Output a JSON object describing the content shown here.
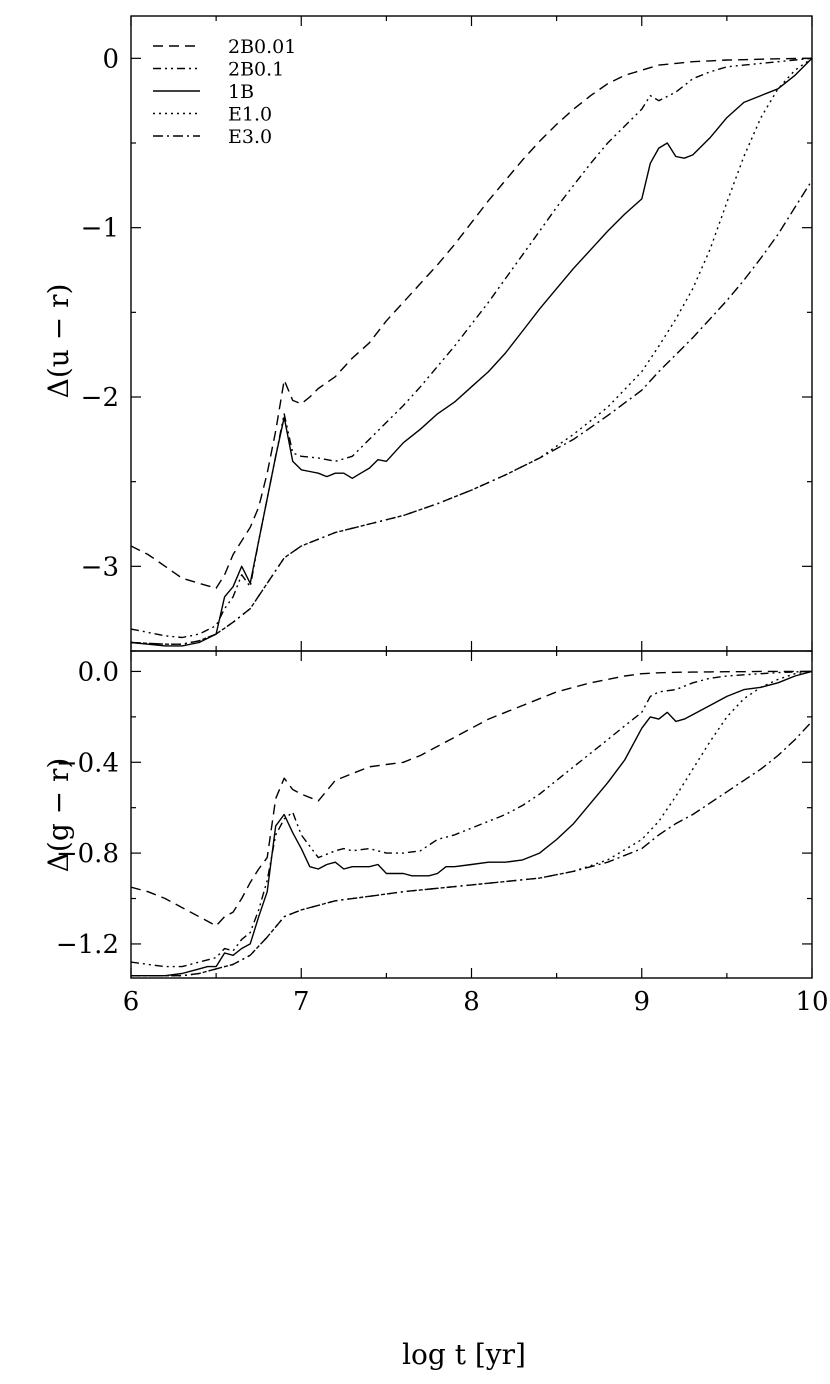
{
  "chart_data": [
    {
      "type": "line",
      "panel": "top",
      "xlabel": "log t [yr]",
      "ylabel": "Δ(u − r)",
      "xlim": [
        6,
        10
      ],
      "ylim": [
        -3.5,
        0.25
      ],
      "xticks": [
        6,
        7,
        8,
        9,
        10
      ],
      "xtick_labels": [
        "6",
        "7",
        "8",
        "9",
        "10"
      ],
      "show_xtick_labels": false,
      "yticks": [
        0,
        -1,
        -2,
        -3
      ],
      "ytick_labels": [
        "0",
        "−1",
        "−2",
        "−3"
      ],
      "grid": false,
      "legend_placement": "top-left",
      "series": [
        {
          "name": "2B0.01",
          "dash": "10,6",
          "x": [
            6.0,
            6.1,
            6.2,
            6.3,
            6.4,
            6.5,
            6.55,
            6.6,
            6.65,
            6.7,
            6.75,
            6.8,
            6.85,
            6.9,
            6.95,
            7.0,
            7.05,
            7.1,
            7.2,
            7.3,
            7.4,
            7.5,
            7.6,
            7.7,
            7.8,
            7.9,
            8.0,
            8.1,
            8.2,
            8.3,
            8.4,
            8.5,
            8.6,
            8.7,
            8.8,
            8.9,
            9.0,
            9.1,
            9.2,
            9.3,
            9.4,
            9.5,
            9.6,
            9.7,
            9.8,
            9.9,
            10.0
          ],
          "y": [
            -2.88,
            -2.93,
            -3.0,
            -3.07,
            -3.1,
            -3.13,
            -3.05,
            -2.93,
            -2.85,
            -2.77,
            -2.65,
            -2.45,
            -2.2,
            -1.9,
            -2.02,
            -2.04,
            -2.0,
            -1.95,
            -1.88,
            -1.77,
            -1.68,
            -1.55,
            -1.44,
            -1.33,
            -1.22,
            -1.1,
            -0.97,
            -0.84,
            -0.72,
            -0.6,
            -0.49,
            -0.39,
            -0.3,
            -0.22,
            -0.15,
            -0.1,
            -0.07,
            -0.04,
            -0.03,
            -0.02,
            -0.015,
            -0.01,
            -0.008,
            -0.005,
            -0.003,
            -0.001,
            0.0
          ]
        },
        {
          "name": "2B0.1",
          "dash": "8,4,2,4,2,4",
          "x": [
            6.0,
            6.1,
            6.2,
            6.3,
            6.4,
            6.5,
            6.55,
            6.6,
            6.65,
            6.7,
            6.75,
            6.8,
            6.85,
            6.9,
            6.95,
            7.0,
            7.1,
            7.2,
            7.3,
            7.4,
            7.5,
            7.6,
            7.7,
            7.8,
            7.9,
            8.0,
            8.1,
            8.2,
            8.3,
            8.4,
            8.5,
            8.6,
            8.7,
            8.8,
            8.9,
            9.0,
            9.05,
            9.1,
            9.2,
            9.3,
            9.4,
            9.5,
            9.6,
            9.7,
            9.8,
            9.9,
            10.0
          ],
          "y": [
            -3.37,
            -3.39,
            -3.41,
            -3.42,
            -3.4,
            -3.35,
            -3.25,
            -3.18,
            -3.05,
            -3.12,
            -2.85,
            -2.6,
            -2.35,
            -2.1,
            -2.33,
            -2.35,
            -2.36,
            -2.38,
            -2.35,
            -2.25,
            -2.15,
            -2.05,
            -1.94,
            -1.82,
            -1.7,
            -1.57,
            -1.44,
            -1.3,
            -1.16,
            -1.02,
            -0.88,
            -0.75,
            -0.62,
            -0.5,
            -0.4,
            -0.3,
            -0.22,
            -0.25,
            -0.2,
            -0.12,
            -0.08,
            -0.05,
            -0.04,
            -0.03,
            -0.02,
            -0.01,
            0.0
          ]
        },
        {
          "name": "1B",
          "dash": "",
          "x": [
            6.0,
            6.1,
            6.2,
            6.3,
            6.4,
            6.5,
            6.55,
            6.6,
            6.65,
            6.7,
            6.75,
            6.8,
            6.85,
            6.9,
            6.95,
            7.0,
            7.05,
            7.1,
            7.15,
            7.2,
            7.25,
            7.3,
            7.35,
            7.4,
            7.45,
            7.5,
            7.6,
            7.7,
            7.8,
            7.9,
            8.0,
            8.1,
            8.2,
            8.3,
            8.4,
            8.5,
            8.6,
            8.7,
            8.8,
            8.9,
            9.0,
            9.05,
            9.1,
            9.15,
            9.2,
            9.25,
            9.3,
            9.4,
            9.5,
            9.6,
            9.7,
            9.8,
            9.9,
            10.0
          ],
          "y": [
            -3.45,
            -3.46,
            -3.47,
            -3.47,
            -3.45,
            -3.4,
            -3.18,
            -3.12,
            -3.0,
            -3.1,
            -2.85,
            -2.6,
            -2.35,
            -2.12,
            -2.38,
            -2.43,
            -2.44,
            -2.45,
            -2.47,
            -2.45,
            -2.45,
            -2.48,
            -2.45,
            -2.42,
            -2.37,
            -2.38,
            -2.27,
            -2.19,
            -2.1,
            -2.03,
            -1.94,
            -1.85,
            -1.74,
            -1.61,
            -1.48,
            -1.36,
            -1.24,
            -1.13,
            -1.02,
            -0.92,
            -0.83,
            -0.62,
            -0.53,
            -0.5,
            -0.58,
            -0.59,
            -0.57,
            -0.47,
            -0.35,
            -0.26,
            -0.22,
            -0.18,
            -0.1,
            0.0
          ]
        },
        {
          "name": "E1.0",
          "dash": "2,4",
          "x": [
            6.0,
            6.2,
            6.3,
            6.4,
            6.5,
            6.6,
            6.7,
            6.8,
            6.9,
            7.0,
            7.2,
            7.4,
            7.6,
            7.8,
            8.0,
            8.2,
            8.4,
            8.6,
            8.8,
            9.0,
            9.1,
            9.2,
            9.3,
            9.4,
            9.5,
            9.6,
            9.7,
            9.8,
            9.9,
            10.0
          ],
          "y": [
            -3.45,
            -3.46,
            -3.46,
            -3.44,
            -3.4,
            -3.33,
            -3.25,
            -3.1,
            -2.95,
            -2.88,
            -2.8,
            -2.75,
            -2.7,
            -2.63,
            -2.55,
            -2.46,
            -2.36,
            -2.22,
            -2.06,
            -1.85,
            -1.7,
            -1.54,
            -1.36,
            -1.13,
            -0.85,
            -0.58,
            -0.35,
            -0.18,
            -0.07,
            0.0
          ]
        },
        {
          "name": "E3.0",
          "dash": "10,4,2,4",
          "x": [
            6.0,
            6.2,
            6.3,
            6.4,
            6.5,
            6.6,
            6.7,
            6.8,
            6.9,
            7.0,
            7.2,
            7.4,
            7.6,
            7.8,
            8.0,
            8.2,
            8.4,
            8.6,
            8.8,
            9.0,
            9.1,
            9.2,
            9.3,
            9.4,
            9.5,
            9.6,
            9.7,
            9.8,
            9.9,
            10.0
          ],
          "y": [
            -3.45,
            -3.46,
            -3.46,
            -3.44,
            -3.4,
            -3.33,
            -3.25,
            -3.1,
            -2.95,
            -2.88,
            -2.8,
            -2.75,
            -2.7,
            -2.63,
            -2.55,
            -2.46,
            -2.36,
            -2.25,
            -2.11,
            -1.96,
            -1.85,
            -1.75,
            -1.65,
            -1.54,
            -1.43,
            -1.31,
            -1.18,
            -1.04,
            -0.88,
            -0.72
          ]
        }
      ]
    },
    {
      "type": "line",
      "panel": "bottom",
      "xlabel": "log t [yr]",
      "ylabel": "Δ(g − r)",
      "xlim": [
        6,
        10
      ],
      "ylim": [
        -1.35,
        0.09
      ],
      "xticks": [
        6,
        7,
        8,
        9,
        10
      ],
      "xtick_labels": [
        "6",
        "7",
        "8",
        "9",
        "10"
      ],
      "show_xtick_labels": true,
      "yticks": [
        0.0,
        -0.4,
        -0.8,
        -1.2
      ],
      "ytick_labels": [
        "0.0",
        "−0.4",
        "−0.8",
        "−1.2"
      ],
      "grid": false,
      "series": [
        {
          "name": "2B0.01",
          "dash": "10,6",
          "x": [
            6.0,
            6.1,
            6.2,
            6.3,
            6.4,
            6.5,
            6.55,
            6.6,
            6.65,
            6.7,
            6.75,
            6.8,
            6.85,
            6.9,
            6.95,
            7.0,
            7.1,
            7.2,
            7.3,
            7.4,
            7.5,
            7.6,
            7.7,
            7.8,
            7.9,
            8.0,
            8.1,
            8.2,
            8.3,
            8.4,
            8.5,
            8.6,
            8.7,
            8.8,
            8.9,
            9.0,
            9.1,
            9.2,
            9.3,
            9.4,
            9.5,
            9.6,
            9.7,
            9.8,
            9.9,
            10.0
          ],
          "y": [
            -0.95,
            -0.97,
            -1.0,
            -1.04,
            -1.08,
            -1.12,
            -1.08,
            -1.06,
            -1.0,
            -0.93,
            -0.87,
            -0.82,
            -0.56,
            -0.47,
            -0.52,
            -0.54,
            -0.57,
            -0.48,
            -0.45,
            -0.42,
            -0.41,
            -0.4,
            -0.37,
            -0.33,
            -0.29,
            -0.25,
            -0.21,
            -0.18,
            -0.15,
            -0.12,
            -0.09,
            -0.07,
            -0.05,
            -0.035,
            -0.02,
            -0.01,
            -0.006,
            -0.004,
            -0.003,
            -0.002,
            -0.001,
            -0.001,
            0.0,
            0.0,
            0.0,
            0.0
          ]
        },
        {
          "name": "2B0.1",
          "dash": "8,4,2,4,2,4",
          "x": [
            6.0,
            6.1,
            6.2,
            6.3,
            6.4,
            6.5,
            6.55,
            6.6,
            6.65,
            6.7,
            6.75,
            6.8,
            6.85,
            6.9,
            6.95,
            7.0,
            7.1,
            7.2,
            7.25,
            7.3,
            7.4,
            7.5,
            7.6,
            7.7,
            7.8,
            7.9,
            8.0,
            8.1,
            8.2,
            8.3,
            8.4,
            8.5,
            8.6,
            8.7,
            8.8,
            8.9,
            9.0,
            9.05,
            9.1,
            9.2,
            9.3,
            9.4,
            9.5,
            9.6,
            9.7,
            9.8,
            9.9,
            10.0
          ],
          "y": [
            -1.28,
            -1.29,
            -1.3,
            -1.3,
            -1.28,
            -1.26,
            -1.22,
            -1.23,
            -1.18,
            -1.15,
            -1.05,
            -0.92,
            -0.72,
            -0.65,
            -0.62,
            -0.72,
            -0.82,
            -0.79,
            -0.78,
            -0.79,
            -0.78,
            -0.8,
            -0.8,
            -0.79,
            -0.74,
            -0.72,
            -0.69,
            -0.66,
            -0.63,
            -0.59,
            -0.54,
            -0.48,
            -0.42,
            -0.36,
            -0.3,
            -0.24,
            -0.18,
            -0.11,
            -0.09,
            -0.08,
            -0.05,
            -0.03,
            -0.02,
            -0.015,
            -0.01,
            -0.005,
            -0.002,
            0.0
          ]
        },
        {
          "name": "1B",
          "dash": "",
          "x": [
            6.0,
            6.1,
            6.2,
            6.3,
            6.35,
            6.4,
            6.45,
            6.5,
            6.55,
            6.6,
            6.65,
            6.7,
            6.75,
            6.8,
            6.85,
            6.9,
            6.95,
            7.0,
            7.05,
            7.1,
            7.15,
            7.2,
            7.25,
            7.3,
            7.35,
            7.4,
            7.45,
            7.5,
            7.6,
            7.65,
            7.7,
            7.75,
            7.8,
            7.85,
            7.9,
            8.0,
            8.1,
            8.2,
            8.3,
            8.4,
            8.5,
            8.6,
            8.7,
            8.8,
            8.9,
            9.0,
            9.05,
            9.1,
            9.15,
            9.2,
            9.25,
            9.3,
            9.4,
            9.5,
            9.6,
            9.7,
            9.8,
            9.9,
            10.0
          ],
          "y": [
            -1.34,
            -1.34,
            -1.34,
            -1.33,
            -1.32,
            -1.31,
            -1.3,
            -1.3,
            -1.24,
            -1.25,
            -1.22,
            -1.2,
            -1.08,
            -0.97,
            -0.68,
            -0.63,
            -0.71,
            -0.78,
            -0.86,
            -0.87,
            -0.85,
            -0.84,
            -0.87,
            -0.86,
            -0.86,
            -0.86,
            -0.85,
            -0.89,
            -0.89,
            -0.9,
            -0.9,
            -0.9,
            -0.89,
            -0.86,
            -0.86,
            -0.85,
            -0.84,
            -0.84,
            -0.83,
            -0.8,
            -0.74,
            -0.67,
            -0.58,
            -0.49,
            -0.39,
            -0.25,
            -0.2,
            -0.21,
            -0.18,
            -0.22,
            -0.21,
            -0.19,
            -0.15,
            -0.11,
            -0.08,
            -0.07,
            -0.05,
            -0.02,
            0.0
          ]
        },
        {
          "name": "E1.0",
          "dash": "2,4",
          "x": [
            6.0,
            6.2,
            6.3,
            6.4,
            6.5,
            6.6,
            6.7,
            6.8,
            6.9,
            7.0,
            7.2,
            7.4,
            7.6,
            7.8,
            8.0,
            8.2,
            8.4,
            8.6,
            8.8,
            9.0,
            9.1,
            9.2,
            9.3,
            9.4,
            9.5,
            9.6,
            9.7,
            9.8,
            9.9,
            10.0
          ],
          "y": [
            -1.34,
            -1.34,
            -1.34,
            -1.33,
            -1.31,
            -1.29,
            -1.25,
            -1.17,
            -1.08,
            -1.05,
            -1.01,
            -0.99,
            -0.97,
            -0.955,
            -0.94,
            -0.925,
            -0.91,
            -0.88,
            -0.83,
            -0.74,
            -0.66,
            -0.55,
            -0.43,
            -0.31,
            -0.2,
            -0.12,
            -0.07,
            -0.035,
            -0.01,
            0.0
          ]
        },
        {
          "name": "E3.0",
          "dash": "10,4,2,4",
          "x": [
            6.0,
            6.2,
            6.3,
            6.4,
            6.5,
            6.6,
            6.7,
            6.8,
            6.9,
            7.0,
            7.2,
            7.4,
            7.6,
            7.8,
            8.0,
            8.2,
            8.4,
            8.6,
            8.8,
            9.0,
            9.1,
            9.2,
            9.3,
            9.4,
            9.5,
            9.6,
            9.7,
            9.8,
            9.9,
            10.0
          ],
          "y": [
            -1.34,
            -1.34,
            -1.34,
            -1.33,
            -1.31,
            -1.29,
            -1.25,
            -1.17,
            -1.08,
            -1.05,
            -1.01,
            -0.99,
            -0.97,
            -0.955,
            -0.94,
            -0.925,
            -0.91,
            -0.88,
            -0.84,
            -0.78,
            -0.72,
            -0.67,
            -0.63,
            -0.58,
            -0.53,
            -0.48,
            -0.43,
            -0.37,
            -0.3,
            -0.22
          ]
        }
      ]
    }
  ]
}
